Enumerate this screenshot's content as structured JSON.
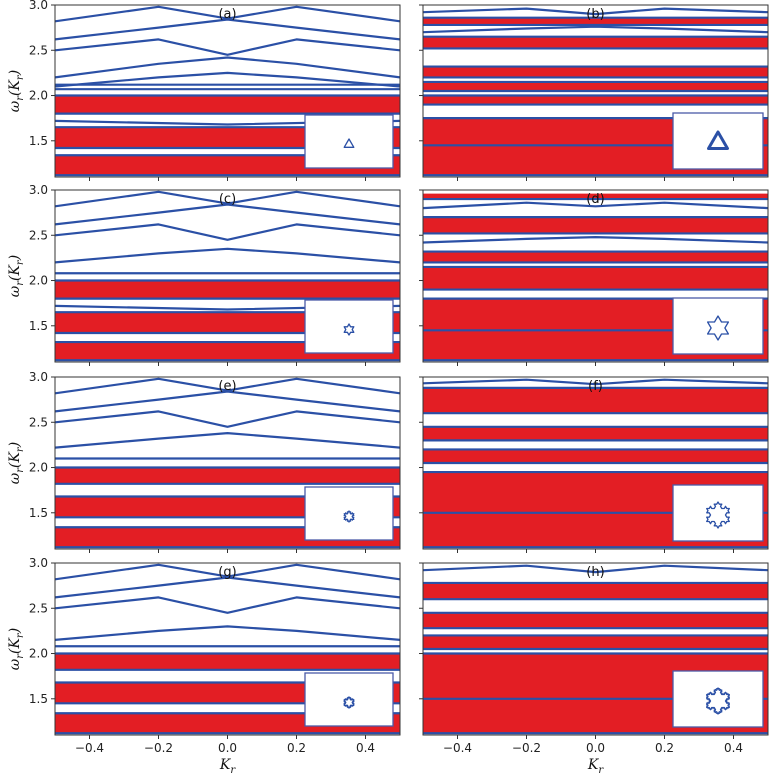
{
  "colors": {
    "band": "#e31e24",
    "line": "#2b50a6",
    "frame": "#333333",
    "inset_frame": "#4a5aa8"
  },
  "x_ticks": [
    "−0.4",
    "−0.2",
    "0.0",
    "0.2",
    "0.4"
  ],
  "y_ticks": [
    "1.5",
    "2.0",
    "2.5",
    "3.0"
  ],
  "xlabel": "K",
  "xlabel_sub": "r",
  "ylabel_parts": {
    "omega": "ω",
    "r": "r",
    "paren_open": "(",
    "K": "K",
    "r2": "r",
    "paren_close": ")"
  },
  "chart_data": [
    {
      "panel": "a",
      "type": "area",
      "inset_shape": "triangle (generation 0)",
      "xlim": [
        -0.5,
        0.5
      ],
      "ylim": [
        1.1,
        3.0
      ],
      "gap_bands": [
        [
          1.12,
          1.34
        ],
        [
          1.42,
          1.65
        ],
        [
          1.8,
          2.0
        ]
      ],
      "flat_lines": [
        1.12,
        1.34,
        1.42,
        1.65,
        1.8,
        2.0,
        2.07,
        2.12
      ],
      "dispersive_lines": [
        {
          "x": [
            -0.5,
            -0.2,
            0.0,
            0.2,
            0.5
          ],
          "y": [
            2.82,
            2.98,
            2.85,
            2.98,
            2.82
          ]
        },
        {
          "x": [
            -0.5,
            -0.2,
            0.0,
            0.2,
            0.5
          ],
          "y": [
            2.62,
            2.75,
            2.84,
            2.75,
            2.62
          ]
        },
        {
          "x": [
            -0.5,
            -0.2,
            0.0,
            0.2,
            0.5
          ],
          "y": [
            2.5,
            2.62,
            2.45,
            2.62,
            2.5
          ]
        },
        {
          "x": [
            -0.5,
            -0.2,
            0.0,
            0.2,
            0.5
          ],
          "y": [
            2.2,
            2.35,
            2.42,
            2.35,
            2.2
          ]
        },
        {
          "x": [
            -0.5,
            -0.2,
            0.0,
            0.2,
            0.5
          ],
          "y": [
            2.1,
            2.2,
            2.25,
            2.2,
            2.1
          ]
        },
        {
          "x": [
            -0.5,
            0.0,
            0.5
          ],
          "y": [
            1.72,
            1.68,
            1.72
          ]
        }
      ]
    },
    {
      "panel": "b",
      "type": "area",
      "inset_shape": "triangle (generation 0)",
      "xlim": [
        -0.5,
        0.5
      ],
      "ylim": [
        1.1,
        3.0
      ],
      "gap_bands": [
        [
          1.12,
          1.75
        ],
        [
          1.9,
          2.0
        ],
        [
          2.05,
          2.15
        ],
        [
          2.2,
          2.32
        ],
        [
          2.52,
          2.65
        ],
        [
          2.78,
          2.86
        ]
      ],
      "flat_lines": [
        1.12,
        1.45,
        1.75,
        1.9,
        2.0,
        2.05,
        2.15,
        2.2,
        2.32,
        2.52,
        2.65,
        2.78,
        2.86
      ],
      "dispersive_lines": [
        {
          "x": [
            -0.5,
            -0.2,
            0.0,
            0.2,
            0.5
          ],
          "y": [
            2.92,
            2.96,
            2.9,
            2.96,
            2.92
          ]
        },
        {
          "x": [
            -0.5,
            -0.2,
            0.0,
            0.2,
            0.5
          ],
          "y": [
            2.7,
            2.74,
            2.76,
            2.74,
            2.7
          ]
        }
      ]
    },
    {
      "panel": "c",
      "type": "area",
      "inset_shape": "Koch snowflake (generation 1)",
      "xlim": [
        -0.5,
        0.5
      ],
      "ylim": [
        1.1,
        3.0
      ],
      "gap_bands": [
        [
          1.12,
          1.32
        ],
        [
          1.42,
          1.65
        ],
        [
          1.8,
          2.0
        ]
      ],
      "flat_lines": [
        1.12,
        1.32,
        1.42,
        1.65,
        1.8,
        2.0,
        2.08
      ],
      "dispersive_lines": [
        {
          "x": [
            -0.5,
            -0.2,
            0.0,
            0.2,
            0.5
          ],
          "y": [
            2.82,
            2.98,
            2.85,
            2.98,
            2.82
          ]
        },
        {
          "x": [
            -0.5,
            -0.2,
            0.0,
            0.2,
            0.5
          ],
          "y": [
            2.62,
            2.75,
            2.84,
            2.75,
            2.62
          ]
        },
        {
          "x": [
            -0.5,
            -0.2,
            0.0,
            0.2,
            0.5
          ],
          "y": [
            2.5,
            2.62,
            2.45,
            2.62,
            2.5
          ]
        },
        {
          "x": [
            -0.5,
            -0.2,
            0.0,
            0.2,
            0.5
          ],
          "y": [
            2.2,
            2.3,
            2.35,
            2.3,
            2.2
          ]
        },
        {
          "x": [
            -0.5,
            0.0,
            0.5
          ],
          "y": [
            1.72,
            1.68,
            1.72
          ]
        }
      ]
    },
    {
      "panel": "d",
      "type": "area",
      "inset_shape": "Koch snowflake (generation 1)",
      "xlim": [
        -0.5,
        0.5
      ],
      "ylim": [
        1.1,
        3.0
      ],
      "gap_bands": [
        [
          1.12,
          1.8
        ],
        [
          1.9,
          2.15
        ],
        [
          2.2,
          2.32
        ],
        [
          2.52,
          2.7
        ],
        [
          2.9,
          2.96
        ]
      ],
      "flat_lines": [
        1.12,
        1.45,
        1.8,
        1.9,
        2.15,
        2.2,
        2.32,
        2.52,
        2.7,
        2.9
      ],
      "dispersive_lines": [
        {
          "x": [
            -0.5,
            -0.2,
            0.0,
            0.2,
            0.5
          ],
          "y": [
            2.8,
            2.86,
            2.82,
            2.86,
            2.8
          ]
        },
        {
          "x": [
            -0.5,
            -0.2,
            0.0,
            0.2,
            0.5
          ],
          "y": [
            2.42,
            2.46,
            2.48,
            2.46,
            2.42
          ]
        }
      ]
    },
    {
      "panel": "e",
      "type": "area",
      "inset_shape": "Koch snowflake (generation 2)",
      "xlim": [
        -0.5,
        0.5
      ],
      "ylim": [
        1.1,
        3.0
      ],
      "gap_bands": [
        [
          1.12,
          1.34
        ],
        [
          1.45,
          1.68
        ],
        [
          1.82,
          2.0
        ]
      ],
      "flat_lines": [
        1.12,
        1.34,
        1.45,
        1.68,
        1.82,
        2.0,
        2.1
      ],
      "dispersive_lines": [
        {
          "x": [
            -0.5,
            -0.2,
            0.0,
            0.2,
            0.5
          ],
          "y": [
            2.82,
            2.98,
            2.85,
            2.98,
            2.82
          ]
        },
        {
          "x": [
            -0.5,
            -0.2,
            0.0,
            0.2,
            0.5
          ],
          "y": [
            2.62,
            2.75,
            2.84,
            2.75,
            2.62
          ]
        },
        {
          "x": [
            -0.5,
            -0.2,
            0.0,
            0.2,
            0.5
          ],
          "y": [
            2.5,
            2.62,
            2.45,
            2.62,
            2.5
          ]
        },
        {
          "x": [
            -0.5,
            -0.2,
            0.0,
            0.2,
            0.5
          ],
          "y": [
            2.22,
            2.32,
            2.38,
            2.32,
            2.22
          ]
        }
      ]
    },
    {
      "panel": "f",
      "type": "area",
      "inset_shape": "Koch snowflake (generation 2)",
      "xlim": [
        -0.5,
        0.5
      ],
      "ylim": [
        1.1,
        3.0
      ],
      "gap_bands": [
        [
          1.12,
          1.95
        ],
        [
          2.05,
          2.2
        ],
        [
          2.3,
          2.45
        ],
        [
          2.6,
          2.88
        ]
      ],
      "flat_lines": [
        1.12,
        1.5,
        1.95,
        2.05,
        2.2,
        2.3,
        2.45,
        2.6,
        2.88
      ],
      "dispersive_lines": [
        {
          "x": [
            -0.5,
            -0.2,
            0.0,
            0.2,
            0.5
          ],
          "y": [
            2.93,
            2.97,
            2.92,
            2.97,
            2.93
          ]
        }
      ]
    },
    {
      "panel": "g",
      "type": "area",
      "inset_shape": "Koch snowflake (generation 3)",
      "xlim": [
        -0.5,
        0.5
      ],
      "ylim": [
        1.1,
        3.0
      ],
      "gap_bands": [
        [
          1.12,
          1.34
        ],
        [
          1.45,
          1.68
        ],
        [
          1.82,
          2.0
        ]
      ],
      "flat_lines": [
        1.12,
        1.34,
        1.45,
        1.68,
        1.82,
        2.0,
        2.08
      ],
      "dispersive_lines": [
        {
          "x": [
            -0.5,
            -0.2,
            0.0,
            0.2,
            0.5
          ],
          "y": [
            2.82,
            2.98,
            2.85,
            2.98,
            2.82
          ]
        },
        {
          "x": [
            -0.5,
            -0.2,
            0.0,
            0.2,
            0.5
          ],
          "y": [
            2.62,
            2.75,
            2.84,
            2.75,
            2.62
          ]
        },
        {
          "x": [
            -0.5,
            -0.2,
            0.0,
            0.2,
            0.5
          ],
          "y": [
            2.5,
            2.62,
            2.45,
            2.62,
            2.5
          ]
        },
        {
          "x": [
            -0.5,
            -0.2,
            0.0,
            0.2,
            0.5
          ],
          "y": [
            2.15,
            2.25,
            2.3,
            2.25,
            2.15
          ]
        }
      ]
    },
    {
      "panel": "h",
      "type": "area",
      "inset_shape": "Koch snowflake (generation 3)",
      "xlim": [
        -0.5,
        0.5
      ],
      "ylim": [
        1.1,
        3.0
      ],
      "gap_bands": [
        [
          1.12,
          2.0
        ],
        [
          2.05,
          2.2
        ],
        [
          2.28,
          2.45
        ],
        [
          2.6,
          2.78
        ]
      ],
      "flat_lines": [
        1.12,
        1.5,
        2.0,
        2.05,
        2.2,
        2.28,
        2.45,
        2.6,
        2.78
      ],
      "dispersive_lines": [
        {
          "x": [
            -0.5,
            -0.2,
            0.0,
            0.2,
            0.5
          ],
          "y": [
            2.92,
            2.97,
            2.9,
            2.97,
            2.92
          ]
        }
      ]
    }
  ]
}
